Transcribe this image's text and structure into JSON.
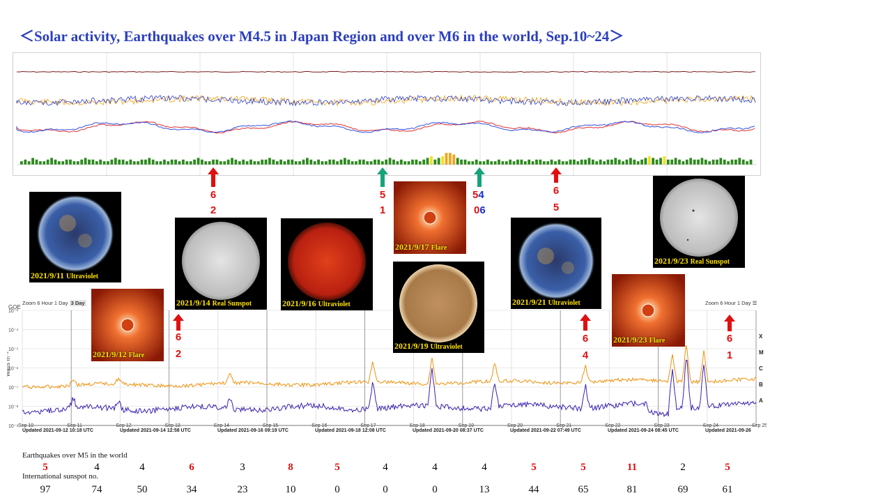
{
  "title": "＜Solar activity, Earthquakes over M4.5 in Japan Region and over M6 in the world,   Sep.10~24＞",
  "top_chart": {
    "kp_values": [
      2,
      3,
      2,
      4,
      3,
      2,
      2,
      3,
      4,
      3,
      2,
      2,
      3,
      3,
      2,
      2,
      3,
      4,
      3,
      3,
      2,
      3,
      2,
      2,
      3,
      4,
      3,
      3,
      2,
      3,
      2,
      2,
      3,
      3,
      4,
      3,
      2,
      2,
      3,
      2,
      3,
      3,
      2,
      3,
      2,
      2,
      3,
      4,
      3,
      2,
      2,
      3,
      3,
      2,
      2,
      3,
      4,
      3,
      2,
      3,
      2,
      3,
      2,
      2,
      3,
      3,
      4,
      3,
      2,
      3,
      2,
      3,
      3,
      2,
      2,
      3,
      4,
      3,
      2,
      3,
      2,
      2,
      3,
      3,
      2,
      3,
      4,
      3,
      2,
      2,
      3,
      3,
      2,
      2,
      3,
      3,
      2,
      3,
      4,
      3,
      2,
      3,
      2,
      2,
      3,
      3,
      2,
      3,
      4,
      5,
      3,
      4,
      5,
      7,
      7,
      6,
      4,
      3,
      3,
      2,
      2,
      3,
      2,
      2,
      3,
      2,
      2,
      3,
      2,
      2,
      3,
      2,
      3,
      3,
      2,
      3,
      2,
      3,
      3,
      2,
      2,
      3,
      2,
      3,
      2,
      2,
      3,
      3,
      2,
      3,
      3,
      4,
      3,
      2,
      3,
      2,
      3,
      3,
      4,
      3,
      2,
      3,
      4,
      3,
      2,
      3,
      4,
      5,
      4,
      3,
      4,
      5,
      3,
      3,
      4,
      3,
      2,
      3,
      4,
      3,
      3,
      4,
      3,
      2,
      3,
      3,
      4,
      3,
      2,
      3,
      3,
      4,
      3,
      2,
      3
    ],
    "kp_colors": {
      "quiet": "#2d8a1e",
      "active": "#f2e21a",
      "storm": "#f5a41a"
    }
  },
  "arrows_top": [
    {
      "color": "#e01010",
      "top": "6",
      "bottom": "2",
      "x": 306
    },
    {
      "color": "#16a37a",
      "top": "5",
      "bottom": "1",
      "x": 549
    },
    {
      "color": "#16a37a",
      "top": "5",
      "top2": "4",
      "bottom": "0",
      "bottom2": "6",
      "x": 688
    },
    {
      "color": "#e01010",
      "top": "6",
      "bottom": "5",
      "x": 798
    }
  ],
  "arrows_bottom": [
    {
      "color": "#e01010",
      "top": "6",
      "bottom": "2",
      "x": 256
    },
    {
      "color": "#e01010",
      "top": "6",
      "bottom": "4",
      "x": 840
    },
    {
      "color": "#e01010",
      "top": "6",
      "bottom": "1",
      "x": 1047
    }
  ],
  "photos": [
    {
      "caption": "2021/9/11",
      "caption_small": "Ultraviolet",
      "type": "uv"
    },
    {
      "caption": "2021/9/12",
      "caption_small": "Flare",
      "type": "flare"
    },
    {
      "caption": "2021/9/14",
      "caption_small": "Real Sunspot",
      "type": "white"
    },
    {
      "caption": "2021/9/16",
      "caption_small": "Ultraviolet",
      "type": "red"
    },
    {
      "caption": "2021/9/17",
      "caption_small": "Flare",
      "type": "flare"
    },
    {
      "caption": "2021/9/19",
      "caption_small": "Ultraviolet",
      "type": "brown"
    },
    {
      "caption": "2021/9/21",
      "caption_small": "Ultraviolet",
      "type": "uv"
    },
    {
      "caption": "2021/9/23",
      "caption_small": "Real Sunspot",
      "type": "white"
    },
    {
      "caption": "2021/9/23",
      "caption_small": "Flare",
      "type": "flare"
    }
  ],
  "chart_data": {
    "type": "line",
    "y_axis_label": "Watts m⁻²",
    "y_tick_labels": [
      "10⁻³",
      "10⁻⁴",
      "10⁻⁵",
      "10⁻⁶",
      "10⁻⁷",
      "10⁻⁸",
      "10⁻⁹"
    ],
    "class_labels": [
      "X",
      "M",
      "C",
      "B",
      "A"
    ],
    "goes_label": "GOE",
    "x_tick_labels": [
      "Sep 10",
      "Sep 11",
      "Sep 12",
      "Sep 13",
      "Sep 14",
      "Sep 15",
      "Sep 16",
      "Sep 17",
      "Sep 18",
      "Sep 19",
      "Sep 20",
      "Sep 21",
      "Sep 22",
      "Sep 23",
      "Sep 24",
      "Sep 25"
    ],
    "series": [
      {
        "color": "#f0900a"
      },
      {
        "color": "#3a1fb0"
      }
    ],
    "updated": [
      "Updated 2021-09-12 10:18 UTC",
      "Updated 2021-09-14 12:58 UTC",
      "Updated 2021-09-16 09:19 UTC",
      "Updated 2021-09-18 12:08 UTC",
      "Updated 2021-09-20 08:37 UTC",
      "Updated 2021-09-22 07:49 UTC",
      "Updated 2021-09-24 08:45 UTC",
      "Updated 2021-09-26"
    ],
    "zoom_text": "Zoom",
    "zoom_options": [
      "6 Hour",
      "1 Day",
      "3 Day"
    ]
  },
  "earthquakes": {
    "label": "Earthquakes over M5 in the world",
    "values": [
      "5",
      "4",
      "4",
      "6",
      "3",
      "8",
      "5",
      "4",
      "4",
      "4",
      "5",
      "5",
      "11",
      "2",
      "5"
    ],
    "highlight": [
      true,
      false,
      false,
      true,
      false,
      true,
      true,
      false,
      false,
      false,
      true,
      true,
      true,
      false,
      true
    ]
  },
  "sunspots": {
    "label": "International sunspot no.",
    "values": [
      "97",
      "74",
      "50",
      "34",
      "23",
      "10",
      "0",
      "0",
      "0",
      "13",
      "44",
      "65",
      "81",
      "69",
      "61"
    ]
  }
}
